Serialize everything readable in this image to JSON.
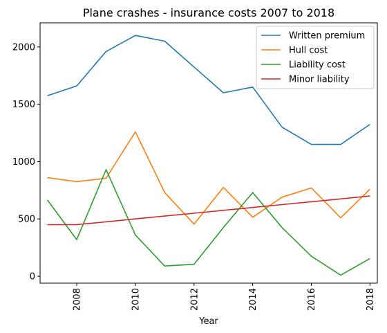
{
  "chart_data": {
    "type": "line",
    "title": "Plane crashes - insurance costs 2007 to 2018",
    "xlabel": "Year",
    "ylabel": "",
    "xlim": [
      2006.75,
      2018.25
    ],
    "ylim": [
      -60,
      2210
    ],
    "x": [
      2007,
      2008,
      2009,
      2010,
      2011,
      2012,
      2013,
      2014,
      2015,
      2016,
      2017,
      2018
    ],
    "x_ticks": [
      "2008",
      "2010",
      "2012",
      "2014",
      "2016",
      "2018"
    ],
    "y_ticks": [
      "0",
      "500",
      "1000",
      "1500",
      "2000"
    ],
    "grid": false,
    "legend_position": "top-right",
    "series": [
      {
        "name": "Written premium",
        "color": "#1f77b4",
        "values": [
          1575,
          1660,
          1960,
          2100,
          2050,
          1825,
          1600,
          1650,
          1300,
          1150,
          1150,
          1325
        ]
      },
      {
        "name": "Hull cost",
        "color": "#ff7f0e",
        "values": [
          860,
          825,
          855,
          1260,
          730,
          455,
          775,
          515,
          690,
          770,
          510,
          760
        ]
      },
      {
        "name": "Liability cost",
        "color": "#2ca02c",
        "values": [
          665,
          320,
          930,
          360,
          90,
          105,
          425,
          730,
          425,
          175,
          10,
          155
        ]
      },
      {
        "name": "Minor liability",
        "color": "#d62728",
        "values": [
          450,
          450,
          475,
          500,
          525,
          550,
          575,
          600,
          625,
          650,
          675,
          700
        ]
      }
    ]
  }
}
